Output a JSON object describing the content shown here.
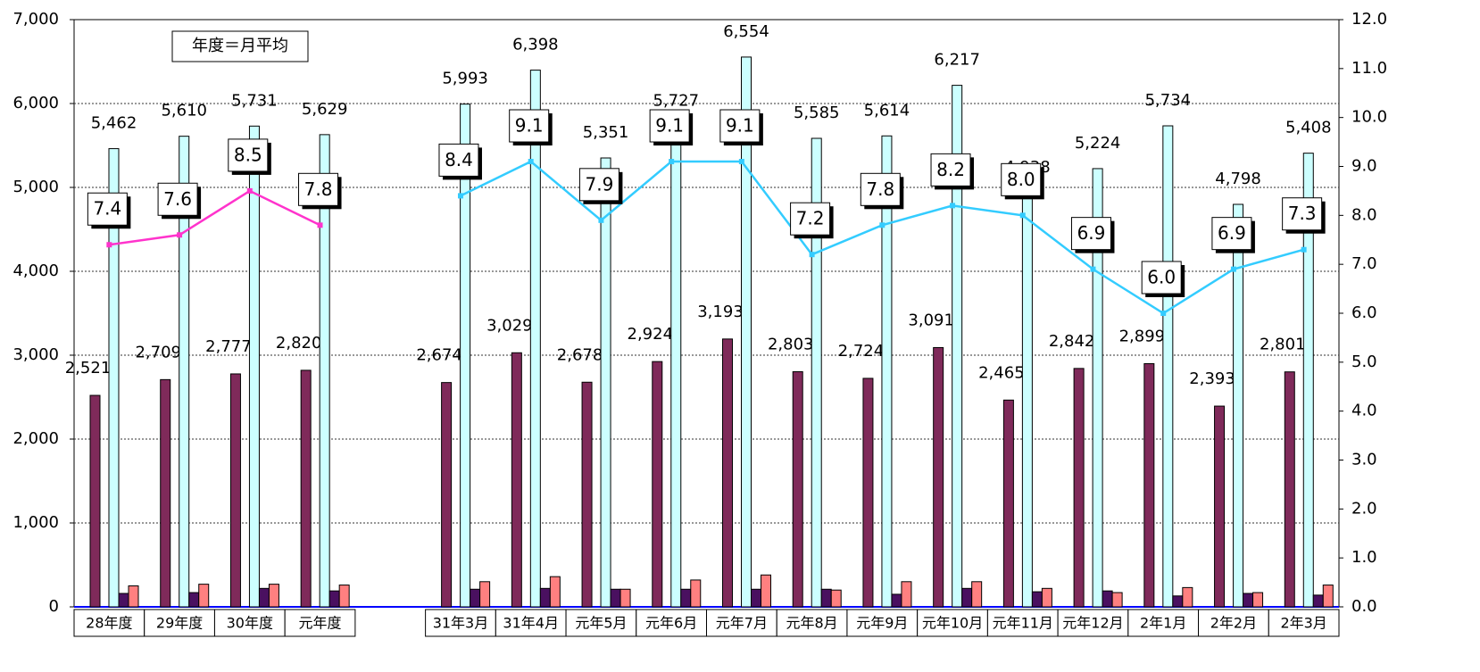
{
  "chart_data": {
    "type": "bar",
    "annotation": "年度＝月平均",
    "categories": [
      "28年度",
      "29年度",
      "30年度",
      "元年度",
      null,
      "31年3月",
      "31年4月",
      "元年5月",
      "元年6月",
      "元年7月",
      "元年8月",
      "元年9月",
      "元年10月",
      "元年11月",
      "元年12月",
      "2年1月",
      "2年2月",
      "2年3月"
    ],
    "series": [
      {
        "type": "bar",
        "color": "#7f2a5a",
        "values": [
          2521,
          2709,
          2777,
          2820,
          null,
          2674,
          3029,
          2678,
          2924,
          3193,
          2803,
          2724,
          3091,
          2465,
          2842,
          2899,
          2393,
          2801
        ],
        "value_labels": [
          "2,521",
          "2,709",
          "2,777",
          "2,820",
          null,
          "2,674",
          "3,029",
          "2,678",
          "2,924",
          "3,193",
          "2,803",
          "2,724",
          "3,091",
          "2,465",
          "2,842",
          "2,899",
          "2,393",
          "2,801"
        ]
      },
      {
        "type": "bar",
        "color": "#ccffff",
        "values": [
          5462,
          5610,
          5731,
          5629,
          null,
          5993,
          6398,
          5351,
          5727,
          6554,
          5585,
          5614,
          6217,
          4938,
          5224,
          5734,
          4798,
          5408
        ],
        "value_labels": [
          "5,462",
          "5,610",
          "5,731",
          "5,629",
          null,
          "5,993",
          "6,398",
          "5,351",
          "5,727",
          "6,554",
          "5,585",
          "5,614",
          "6,217",
          "4,938",
          "5,224",
          "5,734",
          "4,798",
          "5,408"
        ]
      },
      {
        "type": "bar",
        "color": "#4a1060",
        "values": [
          160,
          170,
          220,
          190,
          null,
          210,
          220,
          210,
          210,
          210,
          210,
          150,
          220,
          180,
          190,
          130,
          160,
          140
        ]
      },
      {
        "type": "bar",
        "color": "#ff8080",
        "values": [
          250,
          270,
          270,
          260,
          null,
          300,
          360,
          210,
          320,
          380,
          200,
          300,
          300,
          220,
          170,
          230,
          170,
          260
        ]
      },
      {
        "type": "line",
        "axis": "y2",
        "color": "#ff33cc",
        "values": [
          7.4,
          7.6,
          8.5,
          7.8,
          null,
          null,
          null,
          null,
          null,
          null,
          null,
          null,
          null,
          null,
          null,
          null,
          null,
          null
        ],
        "value_labels": [
          "7.4",
          "7.6",
          "8.5",
          "7.8",
          null,
          null,
          null,
          null,
          null,
          null,
          null,
          null,
          null,
          null,
          null,
          null,
          null,
          null
        ]
      },
      {
        "type": "line",
        "axis": "y2",
        "color": "#33ccff",
        "values": [
          null,
          null,
          null,
          null,
          null,
          8.4,
          9.1,
          7.9,
          9.1,
          9.1,
          7.2,
          7.8,
          8.2,
          8.0,
          6.9,
          6.0,
          6.9,
          7.3
        ],
        "value_labels": [
          null,
          null,
          null,
          null,
          null,
          "8.4",
          "9.1",
          "7.9",
          "9.1",
          "9.1",
          "7.2",
          "7.8",
          "8.2",
          "8.0",
          "6.9",
          "6.0",
          "6.9",
          "7.3"
        ]
      }
    ],
    "ylim": [
      0,
      7000
    ],
    "yticks": [
      0,
      {
        "value": 1000,
        "label": "1,000"
      },
      {
        "value": 2000,
        "label": "2,000"
      },
      {
        "value": 3000,
        "label": "3,000"
      },
      {
        "value": 4000,
        "label": "4,000"
      },
      {
        "value": 5000,
        "label": "5,000"
      },
      {
        "value": 6000,
        "label": "6,000"
      },
      {
        "value": 7000,
        "label": "7,000"
      }
    ],
    "y2lim": [
      0,
      12
    ],
    "y2ticks": [
      {
        "value": 0,
        "label": "0.0"
      },
      {
        "value": 1,
        "label": "1.0"
      },
      {
        "value": 2,
        "label": "2.0"
      },
      {
        "value": 3,
        "label": "3.0"
      },
      {
        "value": 4,
        "label": "4.0"
      },
      {
        "value": 5,
        "label": "5.0"
      },
      {
        "value": 6,
        "label": "6.0"
      },
      {
        "value": 7,
        "label": "7.0"
      },
      {
        "value": 8,
        "label": "8.0"
      },
      {
        "value": 9,
        "label": "9.0"
      },
      {
        "value": 10,
        "label": "10.0"
      },
      {
        "value": 11,
        "label": "11.0"
      },
      {
        "value": 12,
        "label": "12.0"
      }
    ],
    "grid": true
  }
}
